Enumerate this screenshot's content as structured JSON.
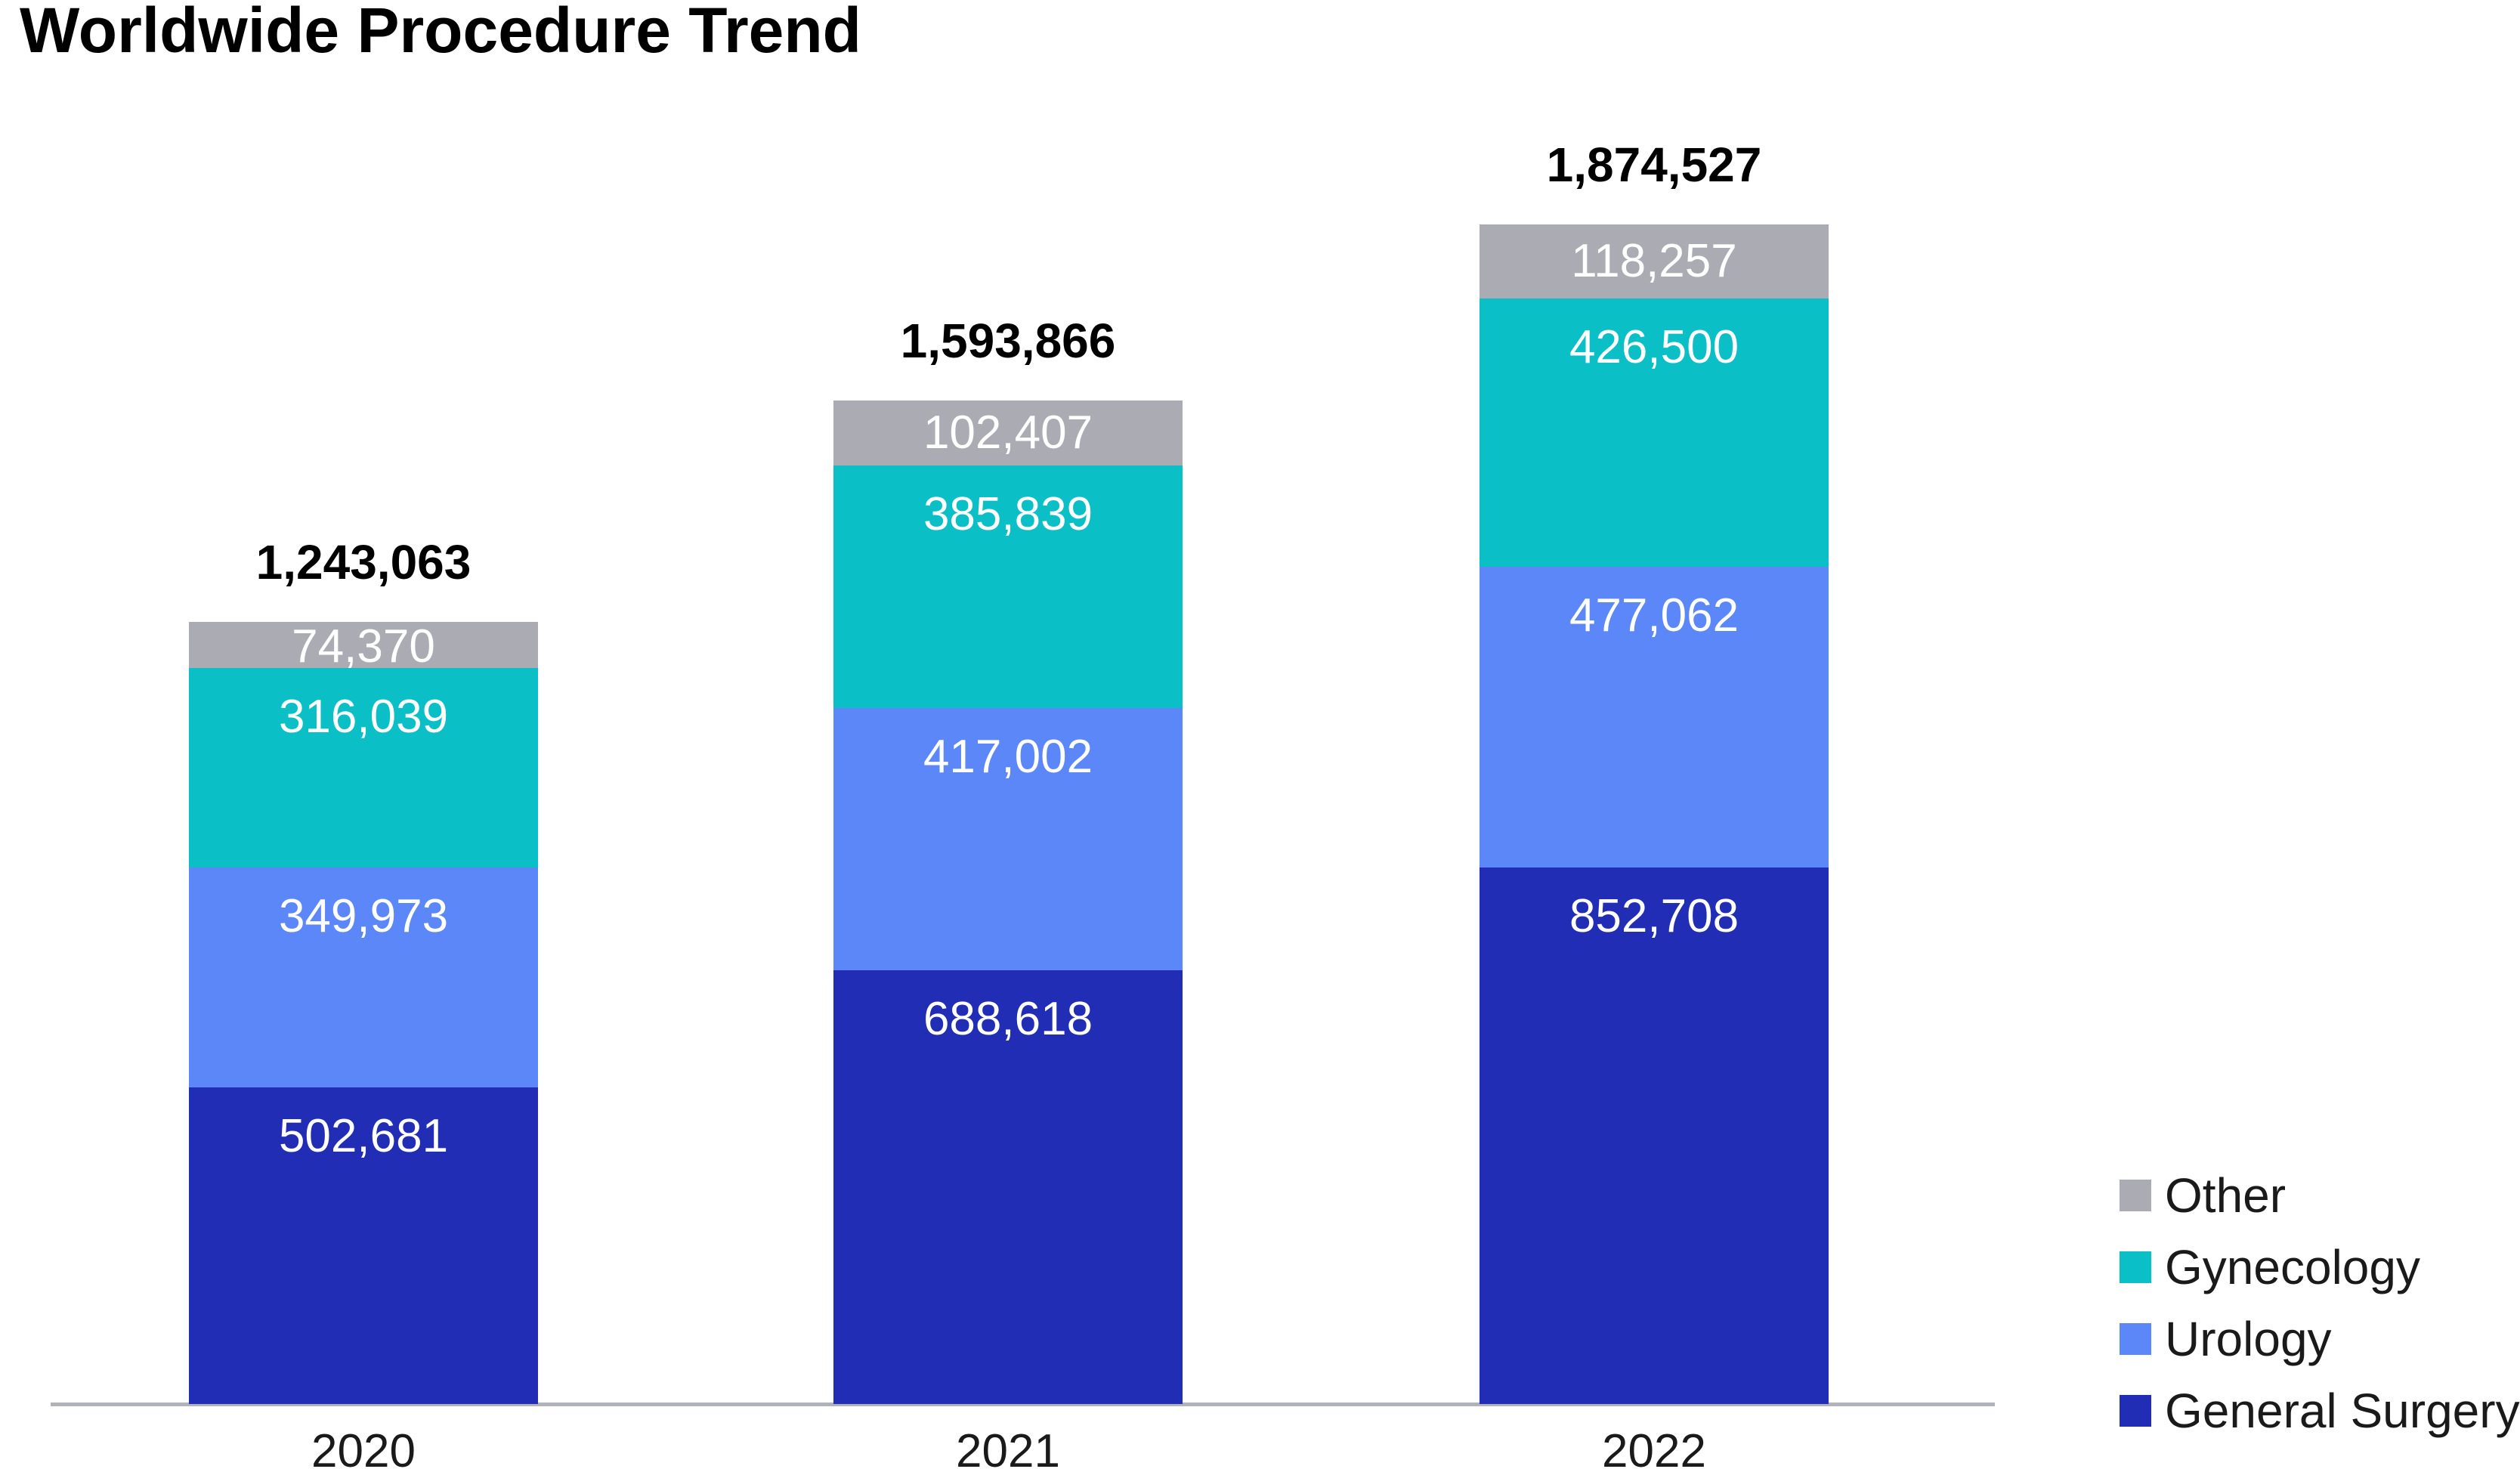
{
  "chart_data": {
    "type": "bar",
    "stacked": true,
    "title": "Worldwide Procedure Trend",
    "categories": [
      "2020",
      "2021",
      "2022"
    ],
    "series": [
      {
        "name": "General Surgery",
        "color": "#222DB6",
        "values": [
          502681,
          688618,
          852708
        ],
        "labels": [
          "502,681",
          "688,618",
          "852,708"
        ]
      },
      {
        "name": "Urology",
        "color": "#5C87F8",
        "values": [
          349973,
          417002,
          477062
        ],
        "labels": [
          "349,973",
          "417,002",
          "477,062"
        ]
      },
      {
        "name": "Gynecology",
        "color": "#0ABFC5",
        "values": [
          316039,
          385839,
          426500
        ],
        "labels": [
          "316,039",
          "385,839",
          "426,500"
        ]
      },
      {
        "name": "Other",
        "color": "#ABACB3",
        "values": [
          74370,
          102407,
          118257
        ],
        "labels": [
          "74,370",
          "102,407",
          "118,257"
        ]
      }
    ],
    "totals": [
      1243063,
      1593866,
      1874527
    ],
    "totals_labels": [
      "1,243,063",
      "1,593,866",
      "1,874,527"
    ],
    "xlabel": "",
    "ylabel": "",
    "grid": false,
    "axis_line_color": "#B2B3BA",
    "value_label_color": "#FFFFFF",
    "text_color": "#1A1A1A",
    "legend_position": "bottom-right"
  },
  "legend": {
    "items": [
      {
        "label": "Other",
        "color": "#ABACB3"
      },
      {
        "label": "Gynecology",
        "color": "#0ABFC5"
      },
      {
        "label": "Urology",
        "color": "#5C87F8"
      },
      {
        "label": "General Surgery",
        "color": "#222DB6"
      }
    ]
  }
}
